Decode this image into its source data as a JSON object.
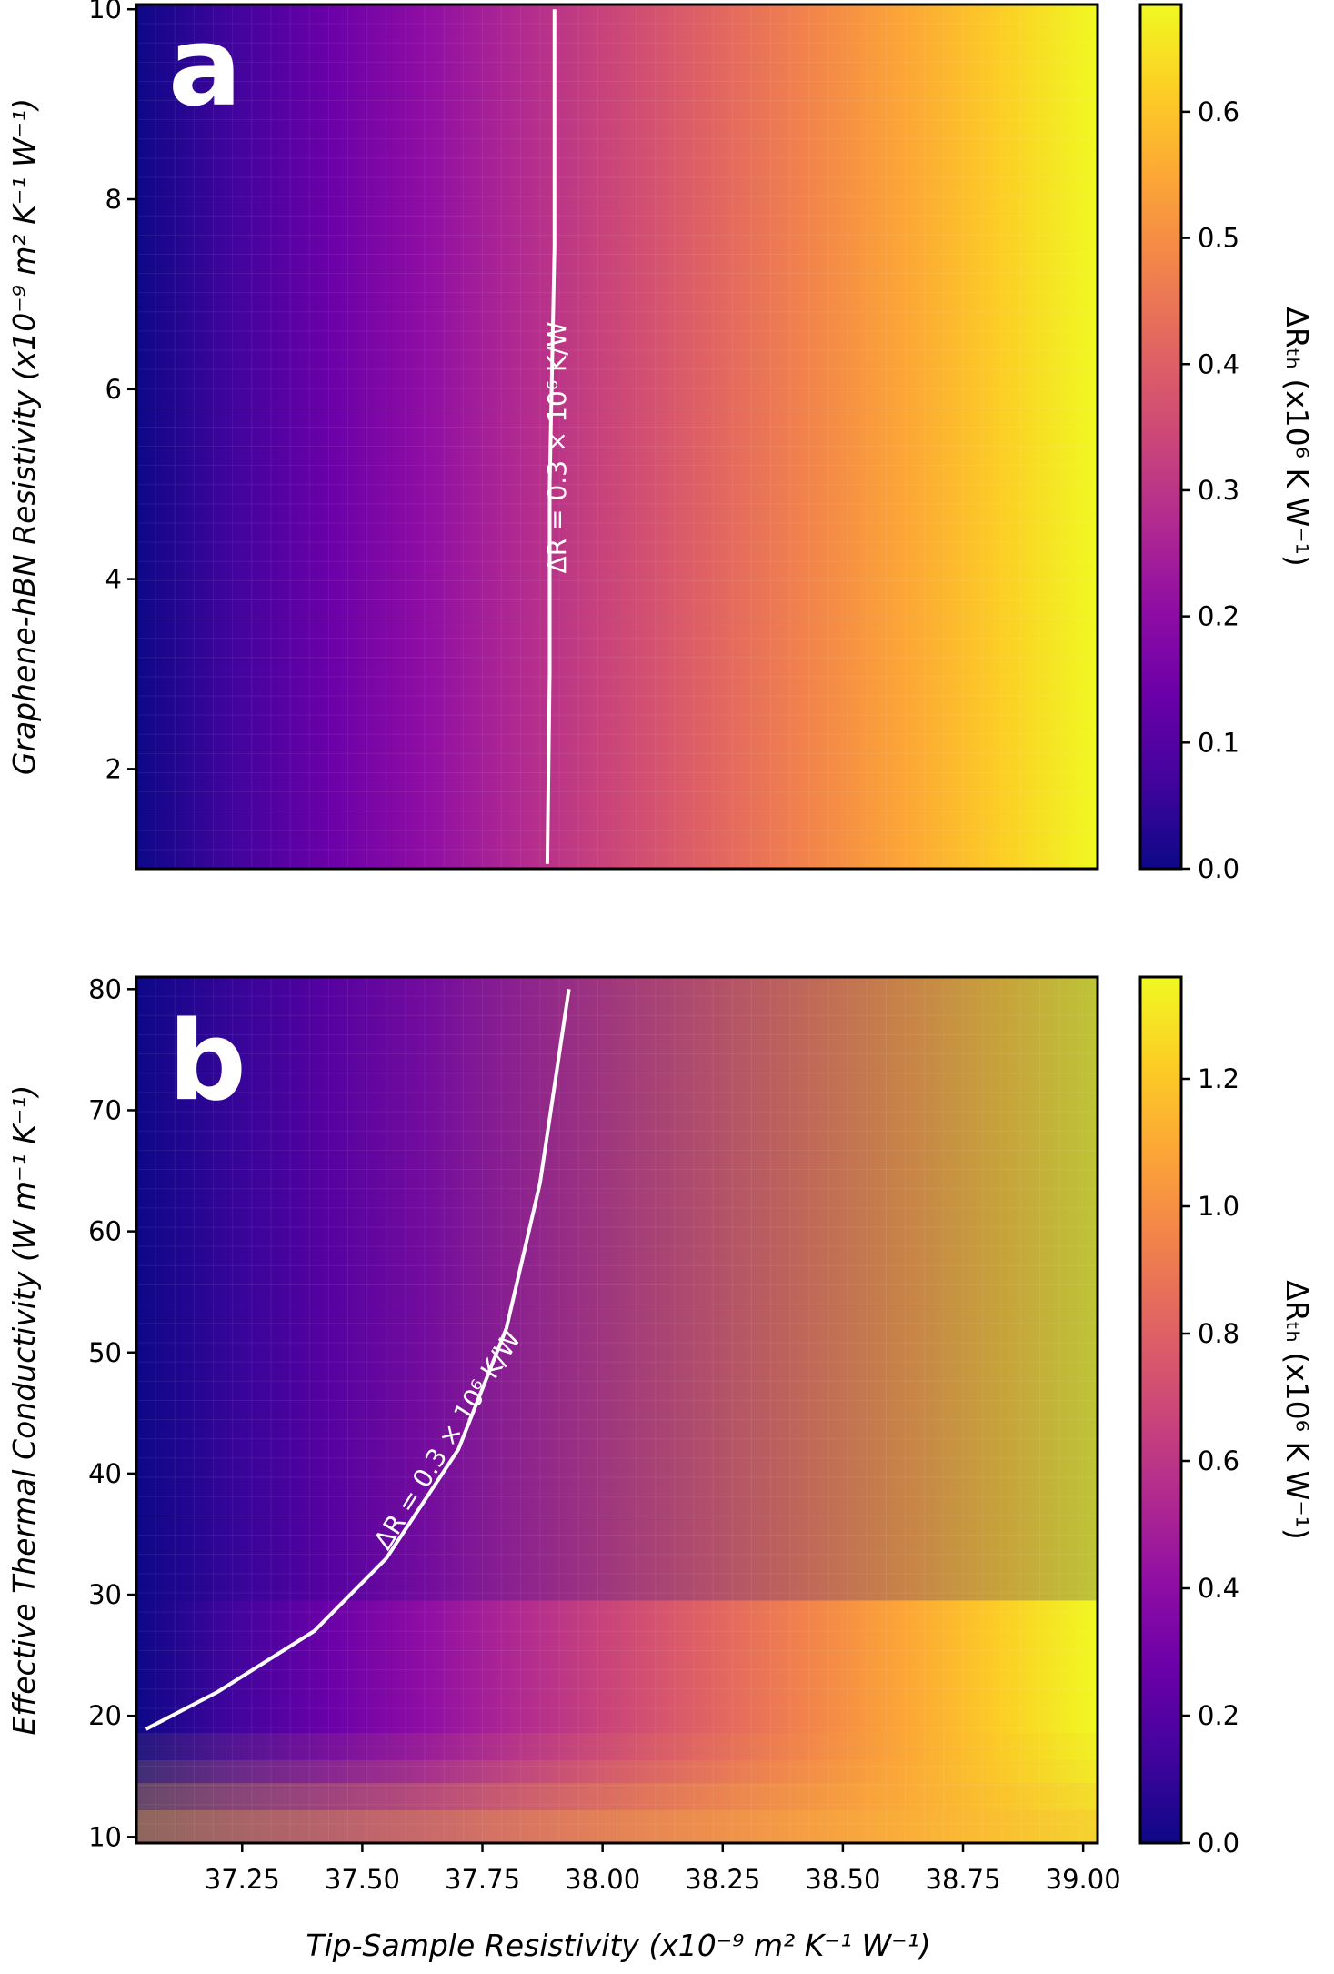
{
  "chart_data": [
    {
      "type": "heatmap",
      "panel_label": "a",
      "xlabel": "",
      "xlim": [
        37.03,
        39.03
      ],
      "x_ticks": [],
      "ylabel": "Graphene-hBN Resistivity (x10⁻⁹ m² K⁻¹ W⁻¹)",
      "ylim": [
        0.95,
        10.05
      ],
      "y_ticks": [
        2,
        4,
        6,
        8,
        10
      ],
      "y_tick_labels": [
        "2",
        "4",
        "6",
        "8",
        "10"
      ],
      "colorbar": {
        "label": "ΔRₜₕ (x10⁶ K W⁻¹)",
        "colormap": "plasma",
        "range": [
          0,
          0.685
        ],
        "ticks": [
          0.0,
          0.1,
          0.2,
          0.3,
          0.4,
          0.5,
          0.6
        ],
        "tick_labels": [
          "0.0",
          "0.1",
          "0.2",
          "0.3",
          "0.4",
          "0.5",
          "0.6"
        ]
      },
      "grid_description": "Value varies with tip-sample resistivity only: ~0 at x=37.03 rising linearly to ~0.685 at x=39.03",
      "value_at_xmin": 0.0,
      "value_at_xmax": 0.685,
      "contour": {
        "label": "ΔR = 0.3 × 10⁶ K/W",
        "points_x": [
          37.9,
          37.9,
          37.89,
          37.89,
          37.885
        ],
        "points_y": [
          10.0,
          7.5,
          5.0,
          3.0,
          1.0
        ]
      }
    },
    {
      "type": "heatmap",
      "panel_label": "b",
      "xlabel": "Tip-Sample Resistivity (x10⁻⁹ m² K⁻¹ W⁻¹)",
      "xlim": [
        37.03,
        39.03
      ],
      "x_ticks": [
        37.25,
        37.5,
        37.75,
        38.0,
        38.25,
        38.5,
        38.75,
        39.0
      ],
      "x_tick_labels": [
        "37.25",
        "37.50",
        "37.75",
        "38.00",
        "38.25",
        "38.50",
        "38.75",
        "39.00"
      ],
      "ylabel": "Effective Thermal Conductivity (W m⁻¹ K⁻¹)",
      "ylim": [
        9.5,
        81
      ],
      "y_ticks": [
        10,
        20,
        30,
        40,
        50,
        60,
        70,
        80
      ],
      "y_tick_labels": [
        "10",
        "20",
        "30",
        "40",
        "50",
        "60",
        "70",
        "80"
      ],
      "colorbar": {
        "label": "ΔRₜₕ (x10⁶ K W⁻¹)",
        "colormap": "plasma",
        "range": [
          0,
          1.36
        ],
        "ticks": [
          0.0,
          0.2,
          0.4,
          0.6,
          0.8,
          1.0,
          1.2
        ],
        "tick_labels": [
          "0.0",
          "0.2",
          "0.4",
          "0.6",
          "0.8",
          "1.0",
          "1.2"
        ]
      },
      "contour": {
        "label": "ΔR = 0.3 × 10⁶ K/W",
        "points_x": [
          37.05,
          37.2,
          37.4,
          37.55,
          37.7,
          37.8,
          37.87,
          37.93
        ],
        "points_y": [
          18.9,
          22.0,
          27.0,
          33.0,
          42.0,
          52.0,
          64.0,
          80.0
        ]
      }
    }
  ]
}
